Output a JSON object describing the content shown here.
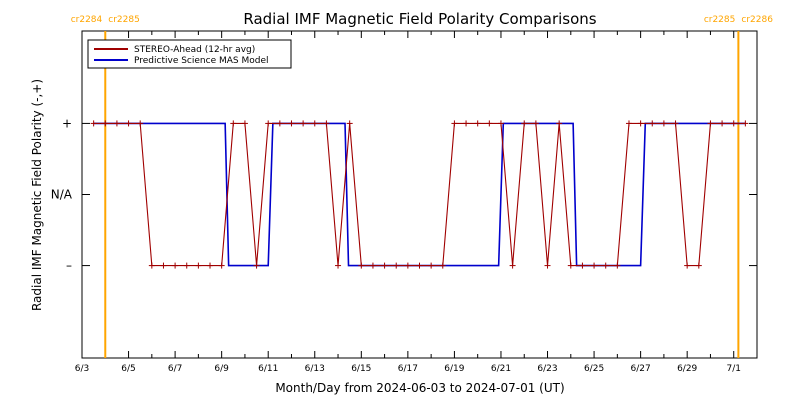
{
  "chart_data": {
    "type": "line",
    "title": "Radial IMF Magnetic Field Polarity Comparisons",
    "xlabel": "Month/Day from 2024-06-03 to 2024-07-01 (UT)",
    "ylabel": "Radial IMF Magnetic Field Polarity (-,+)",
    "xlim": [
      0,
      29
    ],
    "ylim": [
      -2.3,
      2.3
    ],
    "x_ticks": [
      {
        "x": 0,
        "label": "6/3"
      },
      {
        "x": 2,
        "label": "6/5"
      },
      {
        "x": 4,
        "label": "6/7"
      },
      {
        "x": 6,
        "label": "6/9"
      },
      {
        "x": 8,
        "label": "6/11"
      },
      {
        "x": 10,
        "label": "6/13"
      },
      {
        "x": 12,
        "label": "6/15"
      },
      {
        "x": 14,
        "label": "6/17"
      },
      {
        "x": 16,
        "label": "6/19"
      },
      {
        "x": 18,
        "label": "6/21"
      },
      {
        "x": 20,
        "label": "6/23"
      },
      {
        "x": 22,
        "label": "6/25"
      },
      {
        "x": 24,
        "label": "6/27"
      },
      {
        "x": 26,
        "label": "6/29"
      },
      {
        "x": 28,
        "label": "7/1"
      }
    ],
    "y_ticks": [
      {
        "y": 1,
        "label": "+"
      },
      {
        "y": 0,
        "label": "N/A"
      },
      {
        "y": -1,
        "label": "–"
      }
    ],
    "carrington": [
      {
        "x": 1.0,
        "labels": [
          "cr2284",
          "cr2285"
        ],
        "color": "#ffa500"
      },
      {
        "x": 28.2,
        "labels": [
          "cr2285",
          "cr2286"
        ],
        "color": "#ffa500"
      }
    ],
    "legend_position": "top-left",
    "series": [
      {
        "name": "STEREO-Ahead (12-hr avg)",
        "color": "#a00000",
        "markers": true,
        "points": [
          [
            0.5,
            1
          ],
          [
            1.0,
            1
          ],
          [
            1.5,
            1
          ],
          [
            2.0,
            1
          ],
          [
            2.5,
            1
          ],
          [
            3.0,
            -1
          ],
          [
            3.5,
            -1
          ],
          [
            4.0,
            -1
          ],
          [
            4.5,
            -1
          ],
          [
            5.0,
            -1
          ],
          [
            5.5,
            -1
          ],
          [
            6.0,
            -1
          ],
          [
            6.5,
            1
          ],
          [
            7.0,
            1
          ],
          [
            7.5,
            -1
          ],
          [
            8.0,
            1
          ],
          [
            8.5,
            1
          ],
          [
            9.0,
            1
          ],
          [
            9.5,
            1
          ],
          [
            10.0,
            1
          ],
          [
            10.5,
            1
          ],
          [
            11.0,
            -1
          ],
          [
            11.5,
            1
          ],
          [
            12.0,
            -1
          ],
          [
            12.5,
            -1
          ],
          [
            13.0,
            -1
          ],
          [
            13.5,
            -1
          ],
          [
            14.0,
            -1
          ],
          [
            14.5,
            -1
          ],
          [
            15.0,
            -1
          ],
          [
            15.5,
            -1
          ],
          [
            16.0,
            1
          ],
          [
            16.5,
            1
          ],
          [
            17.0,
            1
          ],
          [
            17.5,
            1
          ],
          [
            18.0,
            1
          ],
          [
            18.5,
            -1
          ],
          [
            19.0,
            1
          ],
          [
            19.5,
            1
          ],
          [
            20.0,
            -1
          ],
          [
            20.5,
            1
          ],
          [
            21.0,
            -1
          ],
          [
            21.5,
            -1
          ],
          [
            22.0,
            -1
          ],
          [
            22.5,
            -1
          ],
          [
            23.0,
            -1
          ],
          [
            23.5,
            1
          ],
          [
            24.0,
            1
          ],
          [
            24.5,
            1
          ],
          [
            25.0,
            1
          ],
          [
            25.5,
            1
          ],
          [
            26.0,
            -1
          ],
          [
            26.5,
            -1
          ],
          [
            27.0,
            1
          ],
          [
            27.5,
            1
          ],
          [
            28.0,
            1
          ],
          [
            28.5,
            1
          ]
        ]
      },
      {
        "name": "Predictive Science MAS Model",
        "color": "#0000cc",
        "markers": false,
        "points": [
          [
            0.5,
            1
          ],
          [
            6.15,
            1
          ],
          [
            6.3,
            -1
          ],
          [
            8.0,
            -1
          ],
          [
            8.2,
            1
          ],
          [
            11.3,
            1
          ],
          [
            11.45,
            -1
          ],
          [
            17.9,
            -1
          ],
          [
            18.1,
            1
          ],
          [
            21.1,
            1
          ],
          [
            21.25,
            -1
          ],
          [
            24.0,
            -1
          ],
          [
            24.2,
            1
          ],
          [
            28.5,
            1
          ]
        ]
      }
    ]
  }
}
